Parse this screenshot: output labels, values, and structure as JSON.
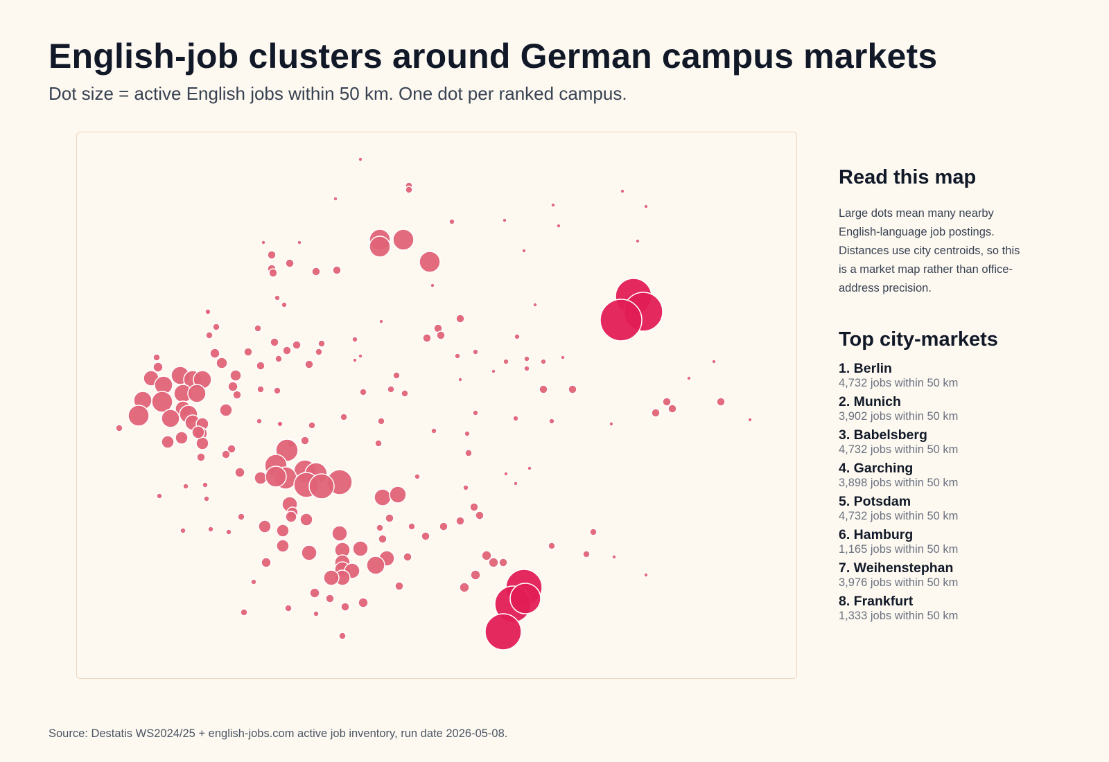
{
  "title": "English-job clusters around German campus markets",
  "subtitle": "Dot size = active English jobs within 50 km. One dot per ranked campus.",
  "source": "Source: Destatis WS2024/25 + english-jobs.com active job inventory, run date 2026-05-08.",
  "colors": {
    "dot_large": "#e11d55",
    "dot_default": "#e06377",
    "background": "#fdf9f1",
    "frame": "#f0d6bd"
  },
  "sidebar": {
    "read_title": "Read this map",
    "read_text": "Large dots mean many nearby English-language job postings. Distances use city centroids, so this is a market map rather than office-address precision.",
    "top_title": "Top city-markets",
    "markets": [
      {
        "name": "1. Berlin",
        "jobs": "4,732 jobs within 50 km"
      },
      {
        "name": "2. Munich",
        "jobs": "3,902 jobs within 50 km"
      },
      {
        "name": "3. Babelsberg",
        "jobs": "4,732 jobs within 50 km"
      },
      {
        "name": "4. Garching",
        "jobs": "3,898 jobs within 50 km"
      },
      {
        "name": "5. Potsdam",
        "jobs": "4,732 jobs within 50 km"
      },
      {
        "name": "6. Hamburg",
        "jobs": "1,165 jobs within 50 km"
      },
      {
        "name": "7. Weihenstephan",
        "jobs": "3,976 jobs within 50 km"
      },
      {
        "name": "8. Frankfurt",
        "jobs": "1,333 jobs within 50 km"
      }
    ]
  },
  "map_data": {
    "points": [
      [
        520,
        230,
        3
      ],
      [
        590,
        268,
        5
      ],
      [
        590,
        274,
        5
      ],
      [
        484,
        287,
        3
      ],
      [
        898,
        276,
        3
      ],
      [
        932,
        298,
        3
      ],
      [
        798,
        296,
        3
      ],
      [
        728,
        318,
        3
      ],
      [
        652,
        320,
        4
      ],
      [
        806,
        326,
        3
      ],
      [
        548,
        346,
        15
      ],
      [
        582,
        346,
        15
      ],
      [
        548,
        356,
        15
      ],
      [
        620,
        378,
        15
      ],
      [
        380,
        350,
        3
      ],
      [
        432,
        350,
        3
      ],
      [
        392,
        368,
        6
      ],
      [
        418,
        380,
        6
      ],
      [
        392,
        388,
        6
      ],
      [
        394,
        394,
        6
      ],
      [
        456,
        392,
        6
      ],
      [
        486,
        390,
        6
      ],
      [
        756,
        362,
        3
      ],
      [
        920,
        348,
        3
      ],
      [
        624,
        412,
        3
      ],
      [
        400,
        430,
        4
      ],
      [
        410,
        440,
        4
      ],
      [
        772,
        440,
        3
      ],
      [
        300,
        450,
        4
      ],
      [
        312,
        472,
        5
      ],
      [
        302,
        484,
        5
      ],
      [
        372,
        474,
        5
      ],
      [
        664,
        460,
        6
      ],
      [
        550,
        464,
        3
      ],
      [
        632,
        474,
        6
      ],
      [
        636,
        484,
        6
      ],
      [
        616,
        488,
        6
      ],
      [
        512,
        490,
        4
      ],
      [
        746,
        486,
        4
      ],
      [
        396,
        494,
        6
      ],
      [
        428,
        498,
        6
      ],
      [
        464,
        496,
        5
      ],
      [
        310,
        510,
        7
      ],
      [
        414,
        506,
        6
      ],
      [
        460,
        508,
        5
      ],
      [
        358,
        508,
        6
      ],
      [
        520,
        514,
        3
      ],
      [
        512,
        520,
        3
      ],
      [
        320,
        524,
        8
      ],
      [
        402,
        518,
        5
      ],
      [
        686,
        508,
        4
      ],
      [
        660,
        514,
        4
      ],
      [
        730,
        522,
        4
      ],
      [
        760,
        518,
        4
      ],
      [
        760,
        532,
        4
      ],
      [
        784,
        522,
        4
      ],
      [
        812,
        516,
        3
      ],
      [
        1030,
        522,
        3
      ],
      [
        712,
        536,
        3
      ],
      [
        446,
        526,
        6
      ],
      [
        376,
        528,
        6
      ],
      [
        572,
        542,
        5
      ],
      [
        664,
        548,
        3
      ],
      [
        340,
        542,
        8
      ],
      [
        994,
        546,
        3
      ],
      [
        226,
        516,
        5
      ],
      [
        228,
        530,
        7
      ],
      [
        218,
        546,
        11
      ],
      [
        260,
        542,
        13
      ],
      [
        278,
        548,
        13
      ],
      [
        292,
        548,
        13
      ],
      [
        236,
        556,
        13
      ],
      [
        264,
        568,
        13
      ],
      [
        284,
        568,
        13
      ],
      [
        206,
        578,
        13
      ],
      [
        234,
        580,
        15
      ],
      [
        264,
        590,
        11
      ],
      [
        272,
        598,
        13
      ],
      [
        246,
        604,
        13
      ],
      [
        278,
        610,
        11
      ],
      [
        292,
        612,
        9
      ],
      [
        290,
        626,
        9
      ],
      [
        242,
        638,
        9
      ],
      [
        292,
        640,
        9
      ],
      [
        262,
        632,
        9
      ],
      [
        286,
        624,
        9
      ],
      [
        200,
        600,
        15
      ],
      [
        172,
        618,
        5
      ],
      [
        326,
        592,
        9
      ],
      [
        336,
        558,
        7
      ],
      [
        342,
        570,
        6
      ],
      [
        376,
        562,
        5
      ],
      [
        400,
        564,
        5
      ],
      [
        524,
        566,
        5
      ],
      [
        564,
        562,
        5
      ],
      [
        584,
        568,
        5
      ],
      [
        784,
        562,
        6
      ],
      [
        826,
        562,
        6
      ],
      [
        1040,
        580,
        6
      ],
      [
        962,
        580,
        6
      ],
      [
        946,
        596,
        6
      ],
      [
        970,
        590,
        6
      ],
      [
        1082,
        606,
        3
      ],
      [
        882,
        612,
        3
      ],
      [
        796,
        608,
        4
      ],
      [
        744,
        604,
        4
      ],
      [
        686,
        596,
        4
      ],
      [
        496,
        602,
        5
      ],
      [
        550,
        608,
        5
      ],
      [
        374,
        608,
        4
      ],
      [
        404,
        612,
        4
      ],
      [
        450,
        614,
        5
      ],
      [
        626,
        622,
        4
      ],
      [
        674,
        626,
        4
      ],
      [
        440,
        636,
        6
      ],
      [
        420,
        640,
        6
      ],
      [
        414,
        650,
        16
      ],
      [
        334,
        648,
        6
      ],
      [
        326,
        656,
        6
      ],
      [
        290,
        660,
        6
      ],
      [
        676,
        654,
        5
      ],
      [
        546,
        640,
        5
      ],
      [
        398,
        672,
        16
      ],
      [
        440,
        680,
        16
      ],
      [
        456,
        684,
        16
      ],
      [
        490,
        696,
        18
      ],
      [
        412,
        690,
        16
      ],
      [
        376,
        690,
        9
      ],
      [
        398,
        688,
        15
      ],
      [
        442,
        700,
        18
      ],
      [
        464,
        702,
        18
      ],
      [
        346,
        682,
        7
      ],
      [
        602,
        688,
        4
      ],
      [
        730,
        684,
        3
      ],
      [
        764,
        676,
        3
      ],
      [
        744,
        698,
        3
      ],
      [
        268,
        702,
        4
      ],
      [
        296,
        700,
        4
      ],
      [
        230,
        716,
        4
      ],
      [
        298,
        720,
        4
      ],
      [
        552,
        718,
        12
      ],
      [
        574,
        714,
        12
      ],
      [
        672,
        704,
        4
      ],
      [
        418,
        728,
        11
      ],
      [
        348,
        746,
        5
      ],
      [
        422,
        740,
        8
      ],
      [
        420,
        746,
        8
      ],
      [
        442,
        750,
        9
      ],
      [
        562,
        748,
        6
      ],
      [
        548,
        762,
        5
      ],
      [
        594,
        760,
        5
      ],
      [
        684,
        732,
        6
      ],
      [
        692,
        744,
        6
      ],
      [
        664,
        752,
        6
      ],
      [
        640,
        760,
        6
      ],
      [
        614,
        774,
        6
      ],
      [
        490,
        770,
        11
      ],
      [
        552,
        778,
        6
      ],
      [
        856,
        768,
        5
      ],
      [
        264,
        766,
        4
      ],
      [
        304,
        764,
        4
      ],
      [
        330,
        768,
        4
      ],
      [
        382,
        760,
        9
      ],
      [
        408,
        766,
        9
      ],
      [
        796,
        788,
        5
      ],
      [
        408,
        788,
        9
      ],
      [
        520,
        792,
        11
      ],
      [
        494,
        794,
        11
      ],
      [
        446,
        798,
        11
      ],
      [
        558,
        806,
        11
      ],
      [
        588,
        804,
        6
      ],
      [
        702,
        802,
        7
      ],
      [
        712,
        812,
        7
      ],
      [
        726,
        812,
        6
      ],
      [
        846,
        800,
        5
      ],
      [
        886,
        804,
        3
      ],
      [
        384,
        812,
        7
      ],
      [
        494,
        812,
        11
      ],
      [
        494,
        822,
        11
      ],
      [
        508,
        824,
        11
      ],
      [
        494,
        834,
        11
      ],
      [
        478,
        834,
        11
      ],
      [
        542,
        816,
        13
      ],
      [
        932,
        830,
        3
      ],
      [
        366,
        840,
        4
      ],
      [
        576,
        846,
        6
      ],
      [
        686,
        830,
        7
      ],
      [
        670,
        848,
        7
      ],
      [
        454,
        856,
        7
      ],
      [
        476,
        864,
        6
      ],
      [
        524,
        870,
        7
      ],
      [
        498,
        876,
        6
      ],
      [
        352,
        884,
        5
      ],
      [
        416,
        878,
        5
      ],
      [
        456,
        886,
        4
      ],
      [
        494,
        918,
        5
      ]
    ],
    "large_points": [
      [
        914,
        428,
        26
      ],
      [
        928,
        450,
        28
      ],
      [
        896,
        462,
        30
      ],
      [
        756,
        848,
        26
      ],
      [
        740,
        872,
        26
      ],
      [
        758,
        864,
        22
      ],
      [
        726,
        912,
        26
      ]
    ]
  }
}
